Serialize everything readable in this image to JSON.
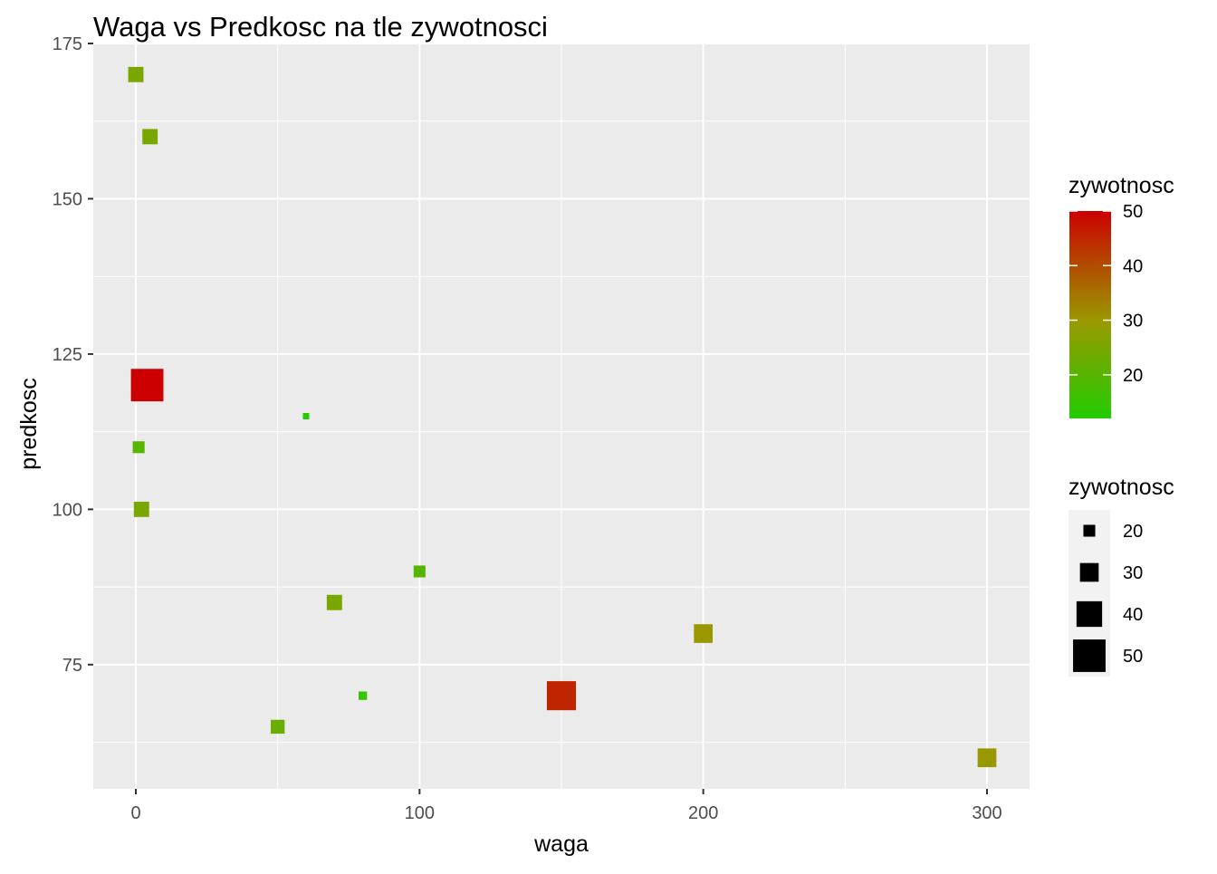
{
  "chart_data": {
    "type": "scatter",
    "title": "Waga vs Predkosc na tle zywotnosci",
    "xlabel": "waga",
    "ylabel": "predkosc",
    "xlim": [
      -15,
      315
    ],
    "ylim": [
      55,
      175
    ],
    "x_ticks": [
      0,
      100,
      200,
      300
    ],
    "x_tick_labels": [
      "0",
      "100",
      "200",
      "300"
    ],
    "y_ticks": [
      75,
      100,
      125,
      150,
      175
    ],
    "y_tick_labels": [
      "75",
      "100",
      "125",
      "150",
      "175"
    ],
    "grid": true,
    "marker": "square",
    "points": [
      {
        "waga": 0,
        "predkosc": 170,
        "zywotnosc": 25
      },
      {
        "waga": 5,
        "predkosc": 160,
        "zywotnosc": 25
      },
      {
        "waga": 4,
        "predkosc": 120,
        "zywotnosc": 50
      },
      {
        "waga": 60,
        "predkosc": 115,
        "zywotnosc": 12
      },
      {
        "waga": 1,
        "predkosc": 110,
        "zywotnosc": 20
      },
      {
        "waga": 2,
        "predkosc": 100,
        "zywotnosc": 25
      },
      {
        "waga": 100,
        "predkosc": 90,
        "zywotnosc": 20
      },
      {
        "waga": 70,
        "predkosc": 85,
        "zywotnosc": 25
      },
      {
        "waga": 200,
        "predkosc": 80,
        "zywotnosc": 30
      },
      {
        "waga": 80,
        "predkosc": 70,
        "zywotnosc": 15
      },
      {
        "waga": 150,
        "predkosc": 70,
        "zywotnosc": 45
      },
      {
        "waga": 50,
        "predkosc": 65,
        "zywotnosc": 23
      },
      {
        "waga": 300,
        "predkosc": 60,
        "zywotnosc": 30
      }
    ],
    "color_legend": {
      "title": "zywotnosc",
      "range": [
        12,
        50
      ],
      "low_color": "#22cc00",
      "mid_color": "#999900",
      "high_color": "#cc0000",
      "ticks": [
        20,
        30,
        40,
        50
      ],
      "tick_labels": [
        "20",
        "30",
        "40",
        "50"
      ]
    },
    "size_legend": {
      "title": "zywotnosc",
      "values": [
        20,
        30,
        40,
        50
      ],
      "labels": [
        "20",
        "30",
        "40",
        "50"
      ]
    },
    "legend_position": "right"
  }
}
